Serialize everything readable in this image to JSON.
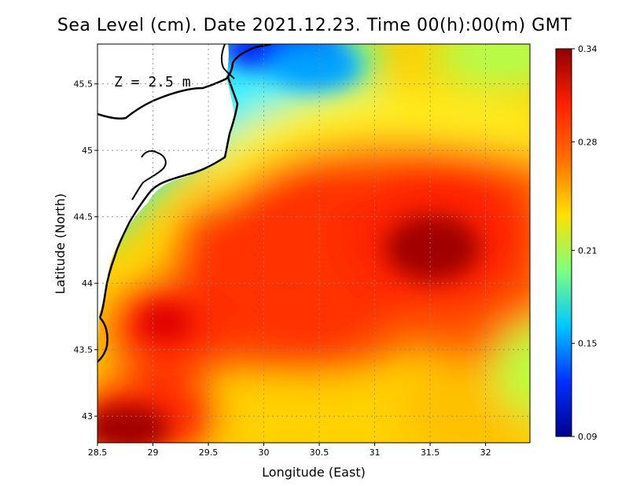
{
  "title": "Sea Level (cm). Date 2021.12.23. Time 00(h):00(m) GMT",
  "depth_label": "Z = 2.5 m",
  "x_axis": {
    "label": "Longitude (East)",
    "range": [
      28.5,
      32.4
    ],
    "ticks": [
      {
        "value": 28.5,
        "label": "28.5"
      },
      {
        "value": 29,
        "label": "29"
      },
      {
        "value": 29.5,
        "label": "29.5"
      },
      {
        "value": 30,
        "label": "30"
      },
      {
        "value": 30.5,
        "label": "30.5"
      },
      {
        "value": 31,
        "label": "31"
      },
      {
        "value": 31.5,
        "label": "31.5"
      },
      {
        "value": 32,
        "label": "32"
      }
    ]
  },
  "y_axis": {
    "label": "Latitude (North)",
    "range": [
      42.8,
      45.8
    ],
    "ticks": [
      {
        "value": 43,
        "label": "43"
      },
      {
        "value": 43.5,
        "label": "43.5"
      },
      {
        "value": 44,
        "label": "44"
      },
      {
        "value": 44.5,
        "label": "44.5"
      },
      {
        "value": 45,
        "label": "45"
      },
      {
        "value": 45.5,
        "label": "45.5"
      }
    ]
  },
  "colorbar": {
    "min": 0.09,
    "max": 0.34,
    "ticks": [
      {
        "value": 0.34,
        "label": "0.34"
      },
      {
        "value": 0.28,
        "label": "0.28"
      },
      {
        "value": 0.21,
        "label": "0.21"
      },
      {
        "value": 0.15,
        "label": "0.15"
      },
      {
        "value": 0.09,
        "label": "0.09"
      }
    ],
    "colors": [
      "#00008f",
      "#0030ff",
      "#00c8ff",
      "#80ff80",
      "#ffe000",
      "#ff7000",
      "#ff2000",
      "#900000"
    ]
  },
  "chart_data": {
    "type": "heatmap",
    "variable": "Sea Level (cm)",
    "description_features": [
      {
        "name": "high",
        "lon": 31.6,
        "lat": 44.25,
        "value": 0.34
      },
      {
        "name": "high",
        "lon": 28.9,
        "lat": 42.95,
        "value": 0.33
      },
      {
        "name": "high",
        "lon": 29.1,
        "lat": 43.8,
        "value": 0.31
      },
      {
        "name": "high",
        "lon": 30.4,
        "lat": 44.45,
        "value": 0.3
      },
      {
        "name": "low",
        "lon": 30.05,
        "lat": 45.75,
        "value": 0.1
      },
      {
        "name": "low",
        "lon": 30.35,
        "lat": 45.6,
        "value": 0.13
      },
      {
        "name": "mid",
        "lon": 30.5,
        "lat": 43.0,
        "value": 0.255
      },
      {
        "name": "mid",
        "lon": 32.3,
        "lat": 43.3,
        "value": 0.22
      }
    ]
  }
}
